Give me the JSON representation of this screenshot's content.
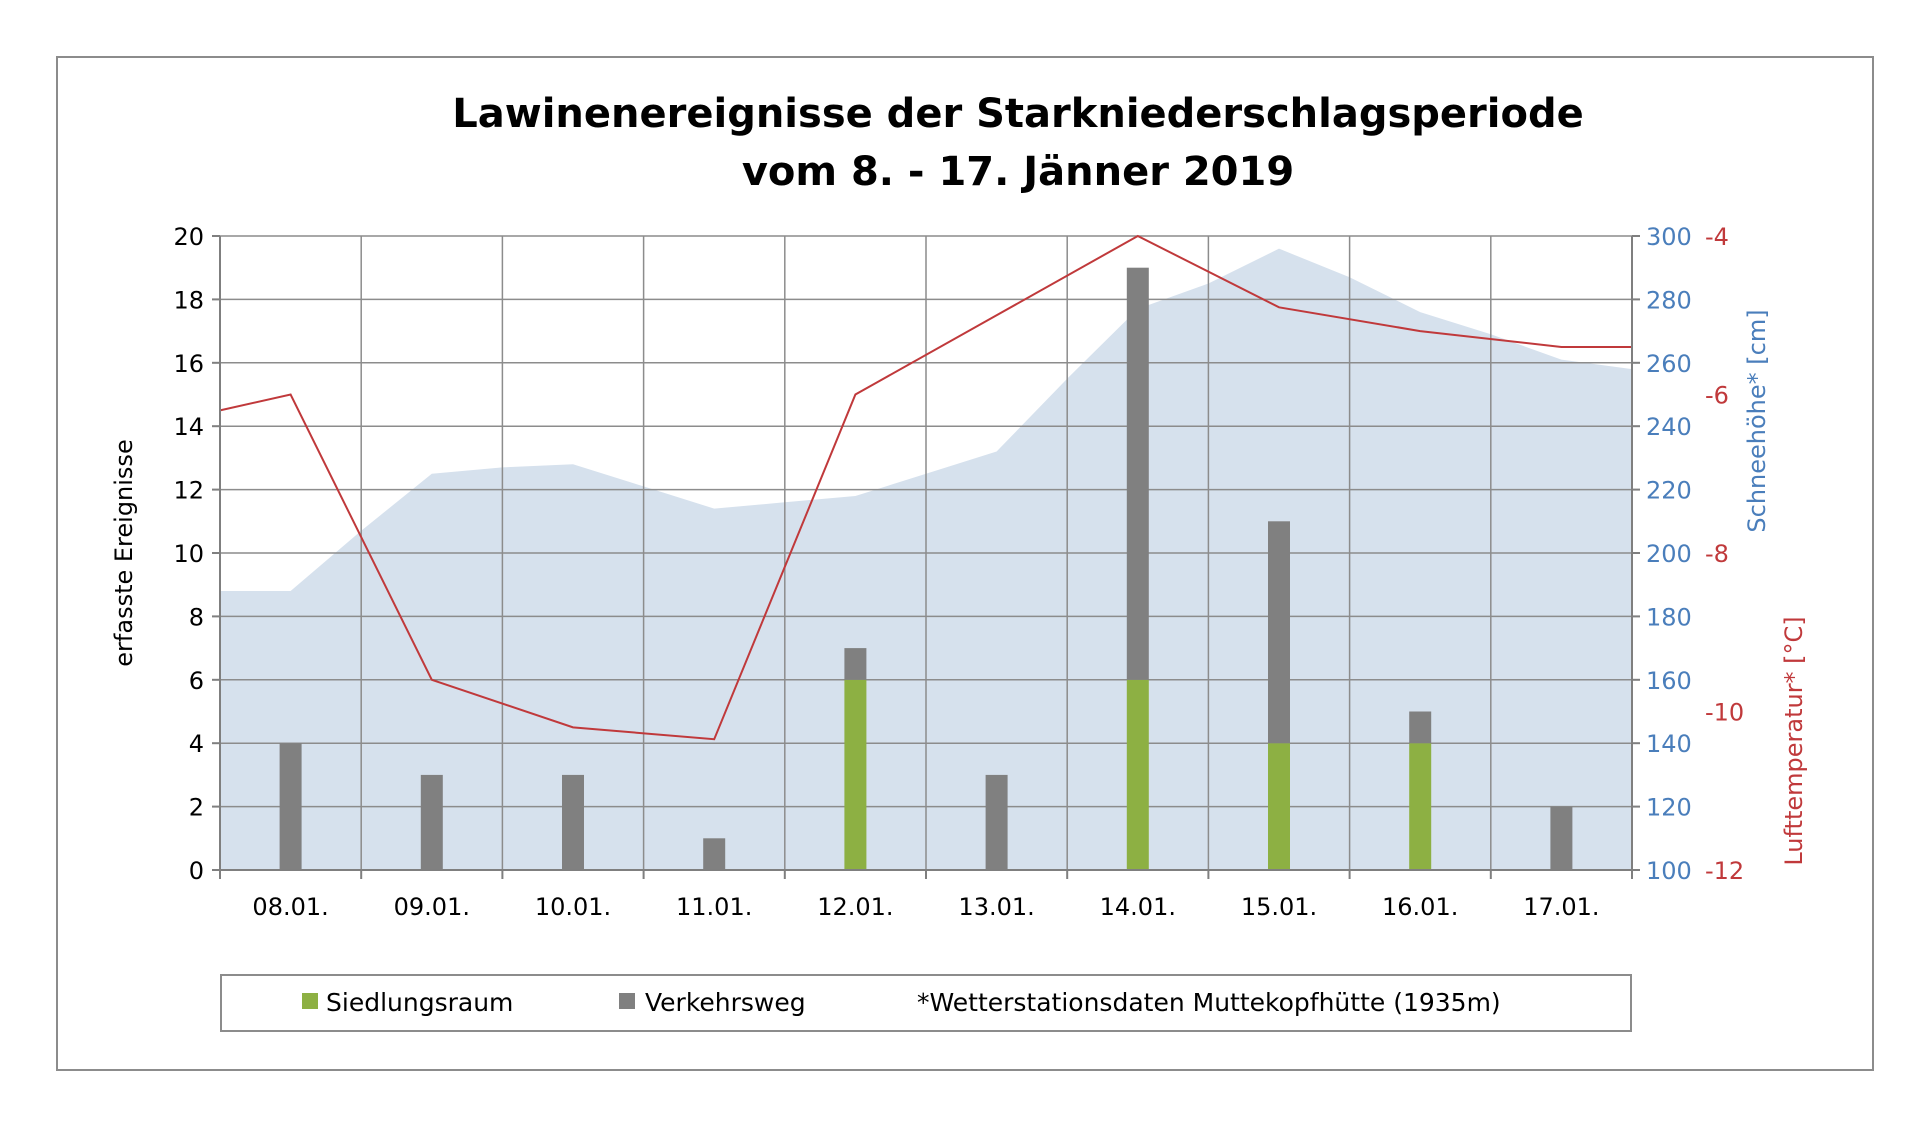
{
  "chart_data": {
    "type": "bar",
    "title": [
      "Lawinenereignisse der Starkniederschlagsperiode",
      "vom 8. - 17. Jänner 2019"
    ],
    "categories": [
      "08.01.",
      "09.01.",
      "10.01.",
      "11.01.",
      "12.01.",
      "13.01.",
      "14.01.",
      "15.01.",
      "16.01.",
      "17.01."
    ],
    "series": [
      {
        "name": "Siedlungsraum",
        "kind": "stacked-bar",
        "color": "#8db043",
        "values": [
          0,
          0,
          0,
          0,
          6,
          0,
          6,
          4,
          4,
          0
        ]
      },
      {
        "name": "Verkehrsweg",
        "kind": "stacked-bar",
        "color": "#808080",
        "values": [
          4,
          3,
          3,
          1,
          1,
          3,
          13,
          7,
          1,
          2
        ]
      },
      {
        "kind": "area",
        "axis": "right-1",
        "color": "#d6e1ed",
        "x": [
          -0.5,
          0,
          0.5,
          1,
          1.5,
          2,
          2.5,
          3,
          3.5,
          4,
          4.5,
          5,
          5.5,
          6,
          6.5,
          7,
          7.5,
          8,
          8.5,
          9,
          9.5
        ],
        "values": [
          188,
          188,
          207,
          225,
          227,
          228,
          221,
          214,
          216,
          218,
          225,
          232,
          255,
          277,
          285,
          296,
          287,
          276,
          269,
          261,
          258
        ]
      },
      {
        "kind": "line",
        "axis": "right-2",
        "color": "#c0393b",
        "x": [
          -0.5,
          0,
          1,
          2,
          3,
          4,
          5,
          6,
          7,
          8,
          9,
          9.5
        ],
        "values": [
          -6.2,
          -6.0,
          -9.6,
          -10.2,
          -10.35,
          -6.0,
          -5.0,
          -4.0,
          -4.9,
          -5.2,
          -5.4,
          -5.4
        ]
      }
    ],
    "y_left": {
      "label": "erfasste Ereignisse",
      "range": [
        0,
        20
      ],
      "ticks": [
        0,
        2,
        4,
        6,
        8,
        10,
        12,
        14,
        16,
        18,
        20
      ]
    },
    "y_right_1": {
      "label": "Schneehöhe* [cm]",
      "range": [
        100,
        300
      ],
      "ticks": [
        100,
        120,
        140,
        160,
        180,
        200,
        220,
        240,
        260,
        280,
        300
      ],
      "color": "#4a7ebb"
    },
    "y_right_2": {
      "label": "Lufttemperatur* [°C]",
      "range": [
        -12,
        -4
      ],
      "ticks": [
        -12,
        -10,
        -8,
        -6,
        -4
      ],
      "color": "#c0393b"
    },
    "grid": true,
    "legend_position": "bottom"
  },
  "legend": {
    "items": [
      {
        "label": "Siedlungsraum",
        "color": "#8db043"
      },
      {
        "label": "Verkehrsweg",
        "color": "#808080"
      }
    ],
    "note": "*Wetterstationsdaten Muttekopfhütte (1935m)"
  }
}
